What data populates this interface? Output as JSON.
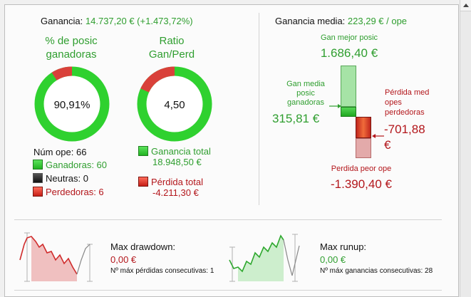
{
  "header": {
    "profit_label": "Ganancia:",
    "profit_value": "14.737,20 € (+1.473,72%)",
    "avg_label": "Ganancia media:",
    "avg_value": "223,29 € / ope"
  },
  "donut_win": {
    "title_line1": "% de posic",
    "title_line2": "ganadoras",
    "value": "90,91%",
    "fraction": 0.9091
  },
  "donut_ratio": {
    "title_line1": "Ratio",
    "title_line2": "Gan/Perd",
    "value": "4,50",
    "fraction": 0.818
  },
  "counts": {
    "total_label": "Núm ope:",
    "total_value": "66",
    "winners": "Ganadoras: 60",
    "neutral": "Neutras: 0",
    "losers": "Perdedoras: 6"
  },
  "totals": {
    "gain_label": "Ganancia total",
    "gain_value": "18.948,50 €",
    "loss_label": "Pérdida total",
    "loss_value": "-4.211,30 €"
  },
  "range_chart": {
    "best_label": "Gan mejor posic",
    "best_value": "1.686,40 €",
    "avg_win_label_1": "Gan media",
    "avg_win_label_2": "posic",
    "avg_win_label_3": "ganadoras",
    "avg_win_value": "315,81 €",
    "avg_loss_label_1": "Pérdida med",
    "avg_loss_label_2": "opes",
    "avg_loss_label_3": "perdedoras",
    "avg_loss_value_1": "-701,88",
    "avg_loss_value_2": "€",
    "worst_label": "Perdida peor ope",
    "worst_value": "-1.390,40 €"
  },
  "drawdown": {
    "label": "Max drawdown:",
    "value": "0,00 €",
    "consec": "Nº máx pérdidas consecutivas: 1"
  },
  "runup": {
    "label": "Max runup:",
    "value": "0,00 €",
    "consec": "Nº máx ganancias consecutivas: 28"
  },
  "colors": {
    "green": "#2f9e2f",
    "red": "#b3161b"
  }
}
